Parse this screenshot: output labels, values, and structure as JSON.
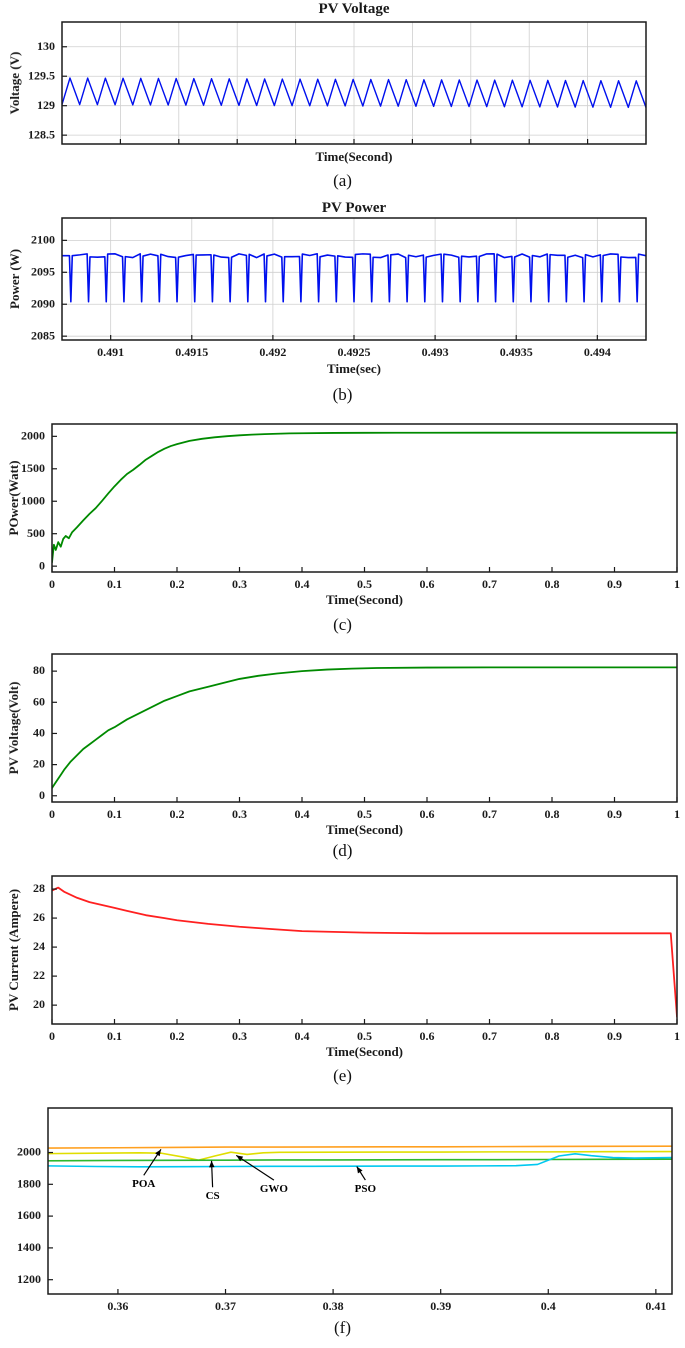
{
  "chart_data": [
    {
      "id": "a",
      "type": "line",
      "title": "PV Voltage",
      "xlabel": "Time(Second)",
      "ylabel": "Voltage (V)",
      "caption": "(a)",
      "xlim": [
        0,
        1
      ],
      "ylim": [
        128.35,
        130.42
      ],
      "xticks": [
        0.1,
        0.2,
        0.3,
        0.4,
        0.5,
        0.6,
        0.7,
        0.8,
        0.9
      ],
      "xtick_labels": [],
      "yticks": [
        128.5,
        129,
        129.5,
        130
      ],
      "ytick_labels": [
        "128.5",
        "129",
        "129.5",
        "130"
      ],
      "grid": true,
      "series": [
        {
          "name": "pv-voltage-ripple",
          "color": "#0010EE",
          "width": 1.4,
          "waveform": {
            "kind": "sawtooth",
            "min": 129.02,
            "max": 129.47,
            "cycles": 33,
            "drift": -0.05
          }
        }
      ]
    },
    {
      "id": "b",
      "type": "line",
      "title": "PV Power",
      "xlabel": "Time(sec)",
      "ylabel": "Power (W)",
      "caption": "(b)",
      "xlim": [
        0.4907,
        0.4943
      ],
      "ylim": [
        2084.4,
        2103.5
      ],
      "xticks": [
        0.491,
        0.4915,
        0.492,
        0.4925,
        0.493,
        0.4935,
        0.494
      ],
      "xtick_labels": [
        "0.491",
        "0.4915",
        "0.492",
        "0.4925",
        "0.493",
        "0.4935",
        "0.494"
      ],
      "yticks": [
        2085,
        2090,
        2095,
        2100
      ],
      "ytick_labels": [
        "2085",
        "2090",
        "2095",
        "2100"
      ],
      "grid": true,
      "series": [
        {
          "name": "pv-power-ripple",
          "color": "#0010EE",
          "width": 1.6,
          "waveform": {
            "kind": "notch",
            "base": 2097.6,
            "dip": 2090.4,
            "cycles": 33
          }
        }
      ]
    },
    {
      "id": "c",
      "type": "line",
      "title": "",
      "xlabel": "Time(Second)",
      "ylabel": "POwer(Watt)",
      "caption": "(c)",
      "xlim": [
        0,
        1
      ],
      "ylim": [
        -90,
        2190
      ],
      "xticks": [
        0,
        0.1,
        0.2,
        0.3,
        0.4,
        0.5,
        0.6,
        0.7,
        0.8,
        0.9,
        1
      ],
      "xtick_labels": [
        "0",
        "0.1",
        "0.2",
        "0.3",
        "0.4",
        "0.5",
        "0.6",
        "0.7",
        "0.8",
        "0.9",
        "1"
      ],
      "yticks": [
        0,
        500,
        1000,
        1500,
        2000
      ],
      "ytick_labels": [
        "0",
        "500",
        "1000",
        "1500",
        "2000"
      ],
      "grid": false,
      "series": [
        {
          "name": "pv-power-transient",
          "color": "#008A00",
          "width": 1.8,
          "points": [
            [
              0,
              60
            ],
            [
              0.003,
              330
            ],
            [
              0.006,
              250
            ],
            [
              0.01,
              370
            ],
            [
              0.014,
              300
            ],
            [
              0.018,
              420
            ],
            [
              0.022,
              465
            ],
            [
              0.027,
              430
            ],
            [
              0.032,
              520
            ],
            [
              0.04,
              600
            ],
            [
              0.05,
              705
            ],
            [
              0.06,
              805
            ],
            [
              0.07,
              895
            ],
            [
              0.08,
              1005
            ],
            [
              0.09,
              1120
            ],
            [
              0.1,
              1230
            ],
            [
              0.11,
              1330
            ],
            [
              0.12,
              1420
            ],
            [
              0.13,
              1485
            ],
            [
              0.14,
              1560
            ],
            [
              0.15,
              1640
            ],
            [
              0.16,
              1700
            ],
            [
              0.17,
              1760
            ],
            [
              0.18,
              1810
            ],
            [
              0.19,
              1850
            ],
            [
              0.2,
              1880
            ],
            [
              0.22,
              1930
            ],
            [
              0.24,
              1962
            ],
            [
              0.26,
              1985
            ],
            [
              0.28,
              2002
            ],
            [
              0.3,
              2016
            ],
            [
              0.32,
              2026
            ],
            [
              0.34,
              2034
            ],
            [
              0.36,
              2040
            ],
            [
              0.38,
              2045
            ],
            [
              0.4,
              2048
            ],
            [
              0.45,
              2052
            ],
            [
              0.5,
              2054
            ],
            [
              0.55,
              2055
            ],
            [
              0.6,
              2055
            ],
            [
              0.7,
              2056
            ],
            [
              0.8,
              2056
            ],
            [
              0.9,
              2056
            ],
            [
              1,
              2056
            ]
          ]
        }
      ]
    },
    {
      "id": "d",
      "type": "line",
      "title": "",
      "xlabel": "Time(Second)",
      "ylabel": "PV Voltage(Volt)",
      "caption": "(d)",
      "xlim": [
        0,
        1
      ],
      "ylim": [
        -4,
        91
      ],
      "xticks": [
        0,
        0.1,
        0.2,
        0.3,
        0.4,
        0.5,
        0.6,
        0.7,
        0.8,
        0.9,
        1
      ],
      "xtick_labels": [
        "0",
        "0.1",
        "0.2",
        "0.3",
        "0.4",
        "0.5",
        "0.6",
        "0.7",
        "0.8",
        "0.9",
        "1"
      ],
      "yticks": [
        0,
        20,
        40,
        60,
        80
      ],
      "ytick_labels": [
        "0",
        "20",
        "40",
        "60",
        "80"
      ],
      "grid": false,
      "series": [
        {
          "name": "pv-voltage-transient",
          "color": "#008A00",
          "width": 1.8,
          "points": [
            [
              0,
              5
            ],
            [
              0.005,
              8
            ],
            [
              0.01,
              11
            ],
            [
              0.015,
              14
            ],
            [
              0.02,
              17
            ],
            [
              0.03,
              22
            ],
            [
              0.04,
              26
            ],
            [
              0.05,
              30
            ],
            [
              0.06,
              33
            ],
            [
              0.07,
              36
            ],
            [
              0.08,
              39
            ],
            [
              0.09,
              42
            ],
            [
              0.1,
              44
            ],
            [
              0.12,
              49
            ],
            [
              0.14,
              53
            ],
            [
              0.16,
              57
            ],
            [
              0.18,
              61
            ],
            [
              0.2,
              64
            ],
            [
              0.22,
              67
            ],
            [
              0.25,
              70
            ],
            [
              0.28,
              73
            ],
            [
              0.3,
              75
            ],
            [
              0.33,
              77
            ],
            [
              0.36,
              78.5
            ],
            [
              0.4,
              80
            ],
            [
              0.44,
              81
            ],
            [
              0.48,
              81.6
            ],
            [
              0.52,
              82
            ],
            [
              0.6,
              82.3
            ],
            [
              0.7,
              82.4
            ],
            [
              0.8,
              82.4
            ],
            [
              0.9,
              82.4
            ],
            [
              1,
              82.4
            ]
          ]
        }
      ]
    },
    {
      "id": "e",
      "type": "line",
      "title": "",
      "xlabel": "Time(Second)",
      "ylabel": "PV Current (Ampere)",
      "caption": "(e)",
      "xlim": [
        0,
        1
      ],
      "ylim": [
        18.7,
        28.9
      ],
      "xticks": [
        0,
        0.1,
        0.2,
        0.3,
        0.4,
        0.5,
        0.6,
        0.7,
        0.8,
        0.9,
        1
      ],
      "xtick_labels": [
        "0",
        "0.1",
        "0.2",
        "0.3",
        "0.4",
        "0.5",
        "0.6",
        "0.7",
        "0.8",
        "0.9",
        "1"
      ],
      "yticks": [
        20,
        22,
        24,
        26,
        28
      ],
      "ytick_labels": [
        "20",
        "22",
        "24",
        "26",
        "28"
      ],
      "grid": false,
      "series": [
        {
          "name": "pv-current-transient",
          "color": "#FF2020",
          "width": 1.8,
          "points": [
            [
              0,
              27.9
            ],
            [
              0.01,
              28.1
            ],
            [
              0.02,
              27.8
            ],
            [
              0.04,
              27.4
            ],
            [
              0.06,
              27.1
            ],
            [
              0.08,
              26.9
            ],
            [
              0.1,
              26.7
            ],
            [
              0.12,
              26.5
            ],
            [
              0.15,
              26.2
            ],
            [
              0.18,
              26.0
            ],
            [
              0.2,
              25.85
            ],
            [
              0.25,
              25.6
            ],
            [
              0.3,
              25.4
            ],
            [
              0.35,
              25.25
            ],
            [
              0.4,
              25.1
            ],
            [
              0.45,
              25.05
            ],
            [
              0.5,
              25.0
            ],
            [
              0.55,
              24.97
            ],
            [
              0.6,
              24.95
            ],
            [
              0.7,
              24.95
            ],
            [
              0.8,
              24.95
            ],
            [
              0.9,
              24.95
            ],
            [
              0.97,
              24.95
            ],
            [
              0.99,
              24.95
            ],
            [
              1,
              19.2
            ]
          ]
        }
      ]
    },
    {
      "id": "f",
      "type": "line",
      "title": "",
      "xlabel": "",
      "ylabel": "",
      "caption": "(f)",
      "xlim": [
        0.3535,
        0.4115
      ],
      "ylim": [
        1110,
        2280
      ],
      "xticks": [
        0.36,
        0.37,
        0.38,
        0.39,
        0.4,
        0.41
      ],
      "xtick_labels": [
        "0.36",
        "0.37",
        "0.38",
        "0.39",
        "0.4",
        "0.41"
      ],
      "yticks": [
        1200,
        1400,
        1600,
        1800,
        2000
      ],
      "ytick_labels": [
        "1200",
        "1400",
        "1600",
        "1800",
        "2000"
      ],
      "grid": false,
      "series": [
        {
          "name": "POA",
          "color": "#FFA020",
          "width": 1.6,
          "points": [
            [
              0.3535,
              2028
            ],
            [
              0.36,
              2030
            ],
            [
              0.365,
              2032
            ],
            [
              0.37,
              2034
            ],
            [
              0.375,
              2034
            ],
            [
              0.38,
              2035
            ],
            [
              0.385,
              2036
            ],
            [
              0.39,
              2036
            ],
            [
              0.395,
              2037
            ],
            [
              0.4,
              2038
            ],
            [
              0.405,
              2039
            ],
            [
              0.4115,
              2040
            ]
          ]
        },
        {
          "name": "CS",
          "color": "#E0DE00",
          "width": 1.6,
          "points": [
            [
              0.3535,
              1993
            ],
            [
              0.358,
              1996
            ],
            [
              0.362,
              1998
            ],
            [
              0.364,
              1996
            ],
            [
              0.366,
              1972
            ],
            [
              0.3675,
              1952
            ],
            [
              0.369,
              1978
            ],
            [
              0.3705,
              2002
            ],
            [
              0.372,
              1988
            ],
            [
              0.3735,
              1998
            ],
            [
              0.375,
              2001
            ],
            [
              0.38,
              2002
            ],
            [
              0.385,
              2003
            ],
            [
              0.39,
              2003
            ],
            [
              0.395,
              2004
            ],
            [
              0.4,
              2004
            ],
            [
              0.405,
              2005
            ],
            [
              0.4115,
              2006
            ]
          ]
        },
        {
          "name": "GWO",
          "color": "#2EB82E",
          "width": 1.6,
          "points": [
            [
              0.3535,
              1948
            ],
            [
              0.36,
              1950
            ],
            [
              0.365,
              1951
            ],
            [
              0.37,
              1952
            ],
            [
              0.375,
              1953
            ],
            [
              0.38,
              1953
            ],
            [
              0.385,
              1954
            ],
            [
              0.39,
              1955
            ],
            [
              0.395,
              1955
            ],
            [
              0.4,
              1956
            ],
            [
              0.405,
              1957
            ],
            [
              0.4115,
              1958
            ]
          ]
        },
        {
          "name": "PSO",
          "color": "#00C8F0",
          "width": 1.6,
          "points": [
            [
              0.3535,
              1916
            ],
            [
              0.358,
              1912
            ],
            [
              0.362,
              1910
            ],
            [
              0.366,
              1911
            ],
            [
              0.37,
              1912
            ],
            [
              0.374,
              1913
            ],
            [
              0.378,
              1913
            ],
            [
              0.382,
              1914
            ],
            [
              0.386,
              1915
            ],
            [
              0.39,
              1915
            ],
            [
              0.394,
              1916
            ],
            [
              0.397,
              1917
            ],
            [
              0.399,
              1925
            ],
            [
              0.401,
              1978
            ],
            [
              0.4025,
              1992
            ],
            [
              0.404,
              1980
            ],
            [
              0.406,
              1968
            ],
            [
              0.408,
              1965
            ],
            [
              0.4115,
              1968
            ]
          ]
        }
      ],
      "annotations": [
        {
          "text": "POA",
          "at": [
            0.3624,
            1800
          ],
          "tip": [
            0.364,
            2020
          ]
        },
        {
          "text": "CS",
          "at": [
            0.3688,
            1725
          ],
          "tip": [
            0.3687,
            1948
          ]
        },
        {
          "text": "GWO",
          "at": [
            0.3745,
            1770
          ],
          "tip": [
            0.371,
            1982
          ]
        },
        {
          "text": "PSO",
          "at": [
            0.383,
            1770
          ],
          "tip": [
            0.3822,
            1912
          ]
        }
      ]
    }
  ]
}
